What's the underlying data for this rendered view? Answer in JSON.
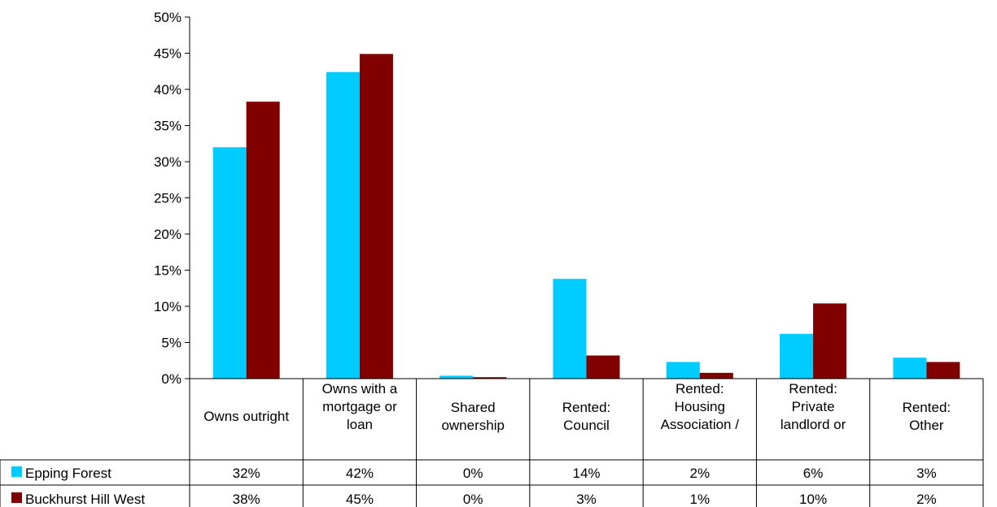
{
  "chart_data": {
    "type": "bar",
    "title": "",
    "xlabel": "",
    "ylabel": "",
    "ylim": [
      0,
      0.5
    ],
    "y_ticks": [
      "0%",
      "5%",
      "10%",
      "15%",
      "20%",
      "25%",
      "30%",
      "35%",
      "40%",
      "45%",
      "50%"
    ],
    "categories": [
      [
        "Owns outright"
      ],
      [
        "Owns with a",
        "mortgage or",
        "loan"
      ],
      [
        "Shared",
        "ownership"
      ],
      [
        "Rented:",
        "Council"
      ],
      [
        "Rented:",
        "Housing",
        "Association /"
      ],
      [
        "Rented:",
        "Private",
        "landlord or"
      ],
      [
        "Rented:",
        "Other"
      ]
    ],
    "series": [
      {
        "name": "Epping Forest",
        "color": "#00CCFF",
        "values": [
          0.32,
          0.424,
          0.004,
          0.138,
          0.023,
          0.062,
          0.029
        ],
        "table_labels": [
          "32%",
          "42%",
          "0%",
          "14%",
          "2%",
          "6%",
          "3%"
        ]
      },
      {
        "name": "Buckhurst Hill West",
        "color": "#800000",
        "values": [
          0.383,
          0.449,
          0.002,
          0.032,
          0.008,
          0.104,
          0.023
        ],
        "table_labels": [
          "38%",
          "45%",
          "0%",
          "3%",
          "1%",
          "10%",
          "2%"
        ]
      }
    ],
    "grid": false,
    "legend": "data-table-left"
  }
}
